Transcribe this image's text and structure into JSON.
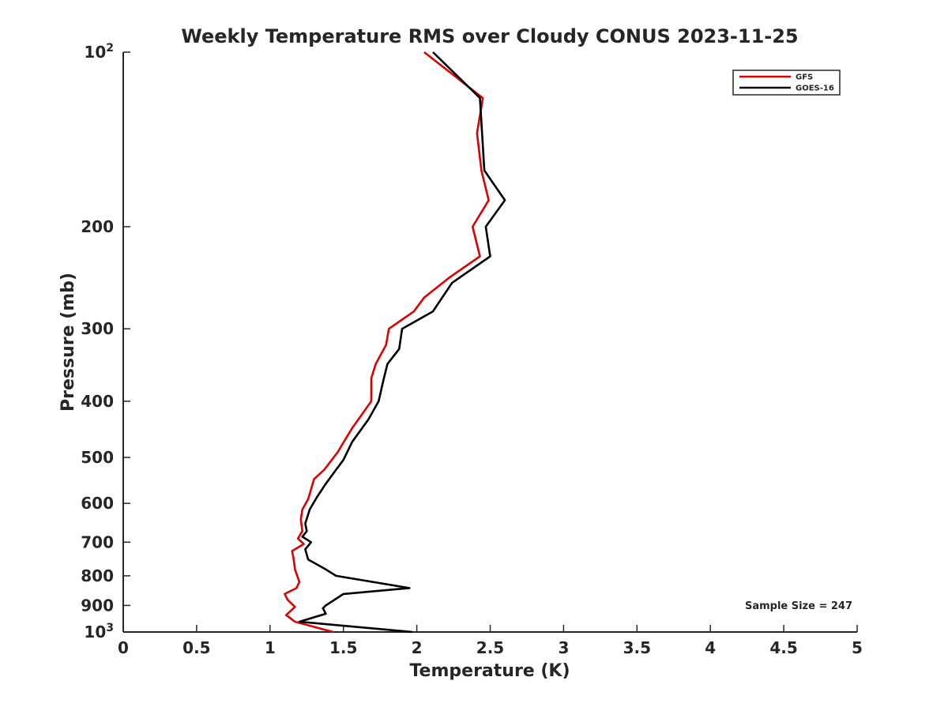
{
  "chart_data": {
    "type": "line",
    "title": "Weekly Temperature RMS over Cloudy CONUS 2023-11-25",
    "xlabel": "Temperature (K)",
    "ylabel": "Pressure (mb)",
    "xlim": [
      0,
      5
    ],
    "ylim": [
      100,
      1000
    ],
    "y_scale": "log",
    "y_reversed": true,
    "grid": false,
    "legend_position": "top-right",
    "annotation": "Sample Size = 247",
    "x_ticks": [
      {
        "value": 0,
        "label": "0"
      },
      {
        "value": 0.5,
        "label": "0.5"
      },
      {
        "value": 1,
        "label": "1"
      },
      {
        "value": 1.5,
        "label": "1.5"
      },
      {
        "value": 2,
        "label": "2"
      },
      {
        "value": 2.5,
        "label": "2.5"
      },
      {
        "value": 3,
        "label": "3"
      },
      {
        "value": 3.5,
        "label": "3.5"
      },
      {
        "value": 4,
        "label": "4"
      },
      {
        "value": 4.5,
        "label": "4.5"
      },
      {
        "value": 5,
        "label": "5"
      }
    ],
    "y_ticks": [
      {
        "value": 100,
        "label": "10",
        "sup": "2"
      },
      {
        "value": 200,
        "label": "200",
        "sup": ""
      },
      {
        "value": 300,
        "label": "300",
        "sup": ""
      },
      {
        "value": 400,
        "label": "400",
        "sup": ""
      },
      {
        "value": 500,
        "label": "500",
        "sup": ""
      },
      {
        "value": 600,
        "label": "600",
        "sup": ""
      },
      {
        "value": 700,
        "label": "700",
        "sup": ""
      },
      {
        "value": 800,
        "label": "800",
        "sup": ""
      },
      {
        "value": 900,
        "label": "900",
        "sup": ""
      },
      {
        "value": 1000,
        "label": "10",
        "sup": "3"
      }
    ],
    "series": [
      {
        "name": "GFS",
        "color": "#dd0000",
        "points": [
          [
            2.05,
            100
          ],
          [
            2.45,
            120
          ],
          [
            2.41,
            138
          ],
          [
            2.44,
            160
          ],
          [
            2.49,
            180
          ],
          [
            2.38,
            200
          ],
          [
            2.43,
            225
          ],
          [
            2.22,
            245
          ],
          [
            2.05,
            265
          ],
          [
            1.98,
            280
          ],
          [
            1.81,
            300
          ],
          [
            1.79,
            320
          ],
          [
            1.72,
            345
          ],
          [
            1.69,
            365
          ],
          [
            1.69,
            400
          ],
          [
            1.56,
            445
          ],
          [
            1.46,
            490
          ],
          [
            1.37,
            525
          ],
          [
            1.3,
            545
          ],
          [
            1.26,
            590
          ],
          [
            1.22,
            615
          ],
          [
            1.21,
            640
          ],
          [
            1.22,
            670
          ],
          [
            1.19,
            690
          ],
          [
            1.23,
            705
          ],
          [
            1.15,
            725
          ],
          [
            1.16,
            745
          ],
          [
            1.17,
            780
          ],
          [
            1.2,
            820
          ],
          [
            1.18,
            840
          ],
          [
            1.1,
            860
          ],
          [
            1.12,
            880
          ],
          [
            1.17,
            905
          ],
          [
            1.11,
            935
          ],
          [
            1.17,
            960
          ],
          [
            1.43,
            1000
          ]
        ]
      },
      {
        "name": "GOES-16",
        "color": "#000000",
        "points": [
          [
            2.11,
            100
          ],
          [
            2.43,
            120
          ],
          [
            2.46,
            160
          ],
          [
            2.6,
            180
          ],
          [
            2.47,
            200
          ],
          [
            2.5,
            225
          ],
          [
            2.24,
            250
          ],
          [
            2.11,
            280
          ],
          [
            1.9,
            300
          ],
          [
            1.88,
            325
          ],
          [
            1.8,
            345
          ],
          [
            1.77,
            370
          ],
          [
            1.74,
            400
          ],
          [
            1.67,
            430
          ],
          [
            1.56,
            470
          ],
          [
            1.5,
            505
          ],
          [
            1.45,
            525
          ],
          [
            1.38,
            555
          ],
          [
            1.32,
            585
          ],
          [
            1.27,
            615
          ],
          [
            1.24,
            650
          ],
          [
            1.25,
            670
          ],
          [
            1.22,
            685
          ],
          [
            1.28,
            700
          ],
          [
            1.24,
            720
          ],
          [
            1.26,
            750
          ],
          [
            1.38,
            780
          ],
          [
            1.45,
            800
          ],
          [
            1.95,
            840
          ],
          [
            1.5,
            860
          ],
          [
            1.38,
            900
          ],
          [
            1.36,
            910
          ],
          [
            1.38,
            930
          ],
          [
            1.2,
            960
          ],
          [
            1.97,
            1000
          ]
        ]
      }
    ]
  }
}
